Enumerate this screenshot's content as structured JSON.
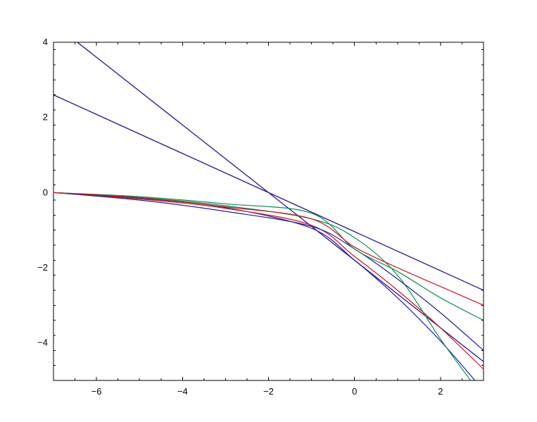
{
  "chart_data": {
    "type": "line",
    "title": "",
    "xlabel": "",
    "ylabel": "",
    "xlim": [
      -7,
      3
    ],
    "ylim": [
      -5,
      4
    ],
    "grid": false,
    "legend": "none",
    "x_ticks": [
      {
        "value": -6,
        "label": "−6"
      },
      {
        "value": -4,
        "label": "−4"
      },
      {
        "value": -2,
        "label": "−2"
      },
      {
        "value": 0,
        "label": "0"
      },
      {
        "value": 2,
        "label": "2"
      }
    ],
    "y_ticks": [
      {
        "value": 4,
        "label": "4"
      },
      {
        "value": 2,
        "label": "2"
      },
      {
        "value": 0,
        "label": "0"
      },
      {
        "value": -2,
        "label": "−2"
      },
      {
        "value": -4,
        "label": "−4"
      }
    ],
    "colors": {
      "red": "#d0141e",
      "green": "#009150",
      "blue": "#1e1ea0"
    },
    "series": [
      {
        "color": "red",
        "x": [
          -7,
          -2,
          3
        ],
        "y": [
          4.5,
          0,
          -4.5
        ]
      },
      {
        "color": "blue",
        "x": [
          -7,
          -2,
          3
        ],
        "y": [
          4.5,
          0,
          -4.5
        ]
      },
      {
        "color": "red",
        "x": [
          -7,
          -2,
          3
        ],
        "y": [
          2.6,
          0,
          -2.6
        ]
      },
      {
        "color": "blue",
        "x": [
          -7,
          -2,
          3
        ],
        "y": [
          2.6,
          0,
          -2.6
        ]
      },
      {
        "color": "blue",
        "x": [
          -7,
          -5,
          -3,
          -1,
          0,
          1,
          2,
          2.8
        ],
        "y": [
          0,
          -0.15,
          -0.4,
          -0.95,
          -1.8,
          -2.8,
          -3.95,
          -5
        ]
      },
      {
        "color": "green",
        "x": [
          -7,
          -5,
          -3,
          -1,
          0,
          1,
          2,
          2.7
        ],
        "y": [
          0,
          -0.13,
          -0.35,
          -0.7,
          -1.2,
          -2.2,
          -3.9,
          -5
        ]
      },
      {
        "color": "red",
        "x": [
          -7,
          -5,
          -3,
          -1,
          0,
          1,
          2,
          3
        ],
        "y": [
          0,
          -0.17,
          -0.42,
          -0.87,
          -1.7,
          -2.6,
          -3.6,
          -4.7
        ]
      },
      {
        "color": "blue",
        "x": [
          -7,
          -5,
          -3,
          -1,
          0,
          1,
          2,
          3
        ],
        "y": [
          0,
          -0.2,
          -0.5,
          -0.9,
          -1.5,
          -2.3,
          -3.2,
          -4.2
        ]
      },
      {
        "color": "green",
        "x": [
          -7,
          -5,
          -3,
          -1,
          0,
          1,
          2,
          3
        ],
        "y": [
          0,
          -0.11,
          -0.3,
          -0.55,
          -1.5,
          -2.1,
          -2.8,
          -3.4
        ]
      },
      {
        "color": "red",
        "x": [
          -7,
          -5,
          -3,
          -1,
          0,
          1,
          2,
          3
        ],
        "y": [
          0,
          -0.14,
          -0.38,
          -0.7,
          -1.45,
          -2.0,
          -2.5,
          -3.0
        ]
      }
    ]
  }
}
